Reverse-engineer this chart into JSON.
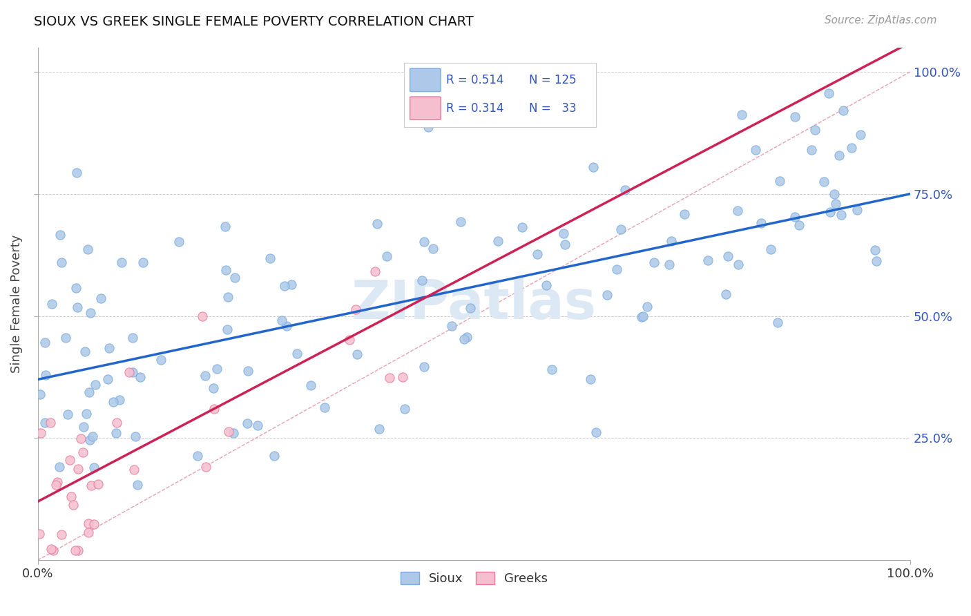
{
  "title": "SIOUX VS GREEK SINGLE FEMALE POVERTY CORRELATION CHART",
  "source": "Source: ZipAtlas.com",
  "ylabel": "Single Female Poverty",
  "background_color": "#ffffff",
  "sioux_color": "#adc8e8",
  "sioux_edge_color": "#7aace0",
  "greek_color": "#f5bfcf",
  "greek_edge_color": "#e87a9a",
  "sioux_R": 0.514,
  "sioux_N": 125,
  "greek_R": 0.314,
  "greek_N": 33,
  "legend_R_color": "#3355bb",
  "sioux_line_color": "#2266cc",
  "greek_line_color": "#cc2255",
  "diagonal_color": "#e8a0b0",
  "diagonal_style": "--",
  "watermark_color": "#dde8f5",
  "watermark_text": "ZIPatlas"
}
